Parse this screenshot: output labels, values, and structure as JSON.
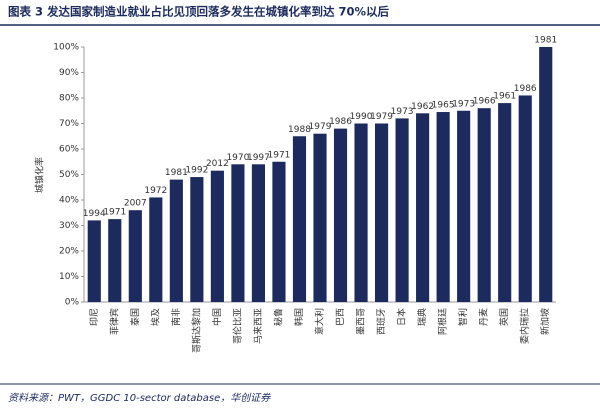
{
  "chart_data": {
    "type": "bar",
    "title": "图表 3   发达国家制造业就业占比见顶回落多发生在城镇化率到达 70%以后",
    "y_label": "城镇化率",
    "source": "资料来源：PWT，GGDC 10-sector database，华创证券",
    "categories": [
      "印尼",
      "菲律宾",
      "泰国",
      "埃及",
      "南非",
      "哥斯达黎加",
      "中国",
      "哥伦比亚",
      "马来西亚",
      "秘鲁",
      "韩国",
      "意大利",
      "巴西",
      "墨西哥",
      "西班牙",
      "日本",
      "瑞典",
      "阿根廷",
      "智利",
      "丹麦",
      "英国",
      "委内瑞拉",
      "新加坡"
    ],
    "values": [
      32,
      32.5,
      36,
      41,
      48,
      49,
      51.5,
      54,
      54,
      55,
      65,
      66,
      68,
      70,
      70,
      72,
      74,
      74.5,
      75,
      76,
      78,
      81,
      100
    ],
    "bar_labels": [
      "1994",
      "1971",
      "2007",
      "1972",
      "1981",
      "1992",
      "2012",
      "1970",
      "1997",
      "1971",
      "1988",
      "1979",
      "1986",
      "1990",
      "1979",
      "1973",
      "1962",
      "1965",
      "1973",
      "1966",
      "1961",
      "1986",
      "1981"
    ],
    "color": "#1c2a5e",
    "ylim": [
      0,
      100
    ],
    "yticks": [
      {
        "value": 0,
        "label": "0%"
      },
      {
        "value": 10,
        "label": "10%"
      },
      {
        "value": 20,
        "label": "20%"
      },
      {
        "value": 30,
        "label": "30%"
      },
      {
        "value": 40,
        "label": "40%"
      },
      {
        "value": 50,
        "label": "50%"
      },
      {
        "value": 60,
        "label": "60%"
      },
      {
        "value": 70,
        "label": "70%"
      },
      {
        "value": 80,
        "label": "80%"
      },
      {
        "value": 90,
        "label": "90%"
      },
      {
        "value": 100,
        "label": "100%"
      }
    ],
    "grid": false
  }
}
